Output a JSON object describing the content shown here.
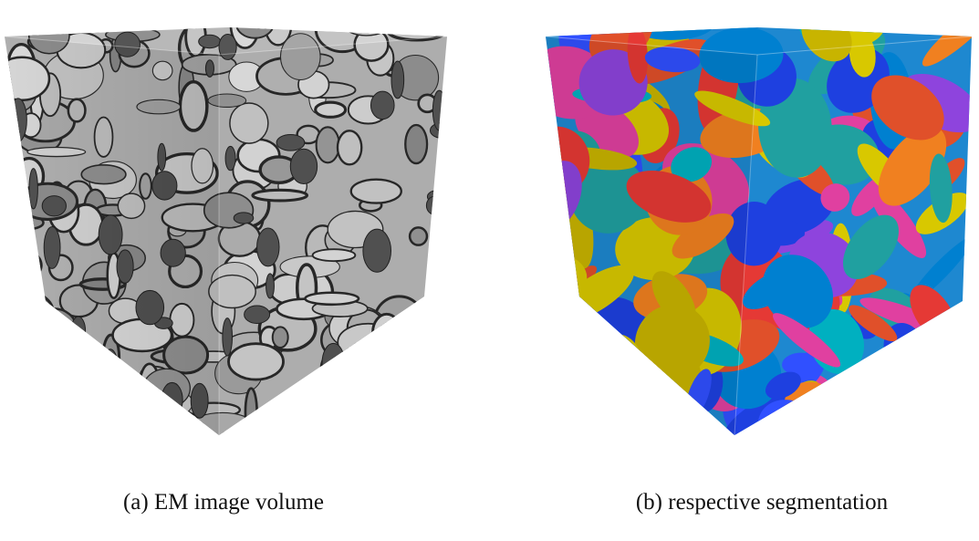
{
  "figures": [
    {
      "caption": "(a) EM image volume"
    },
    {
      "caption": "(b) respective segmentation"
    }
  ]
}
